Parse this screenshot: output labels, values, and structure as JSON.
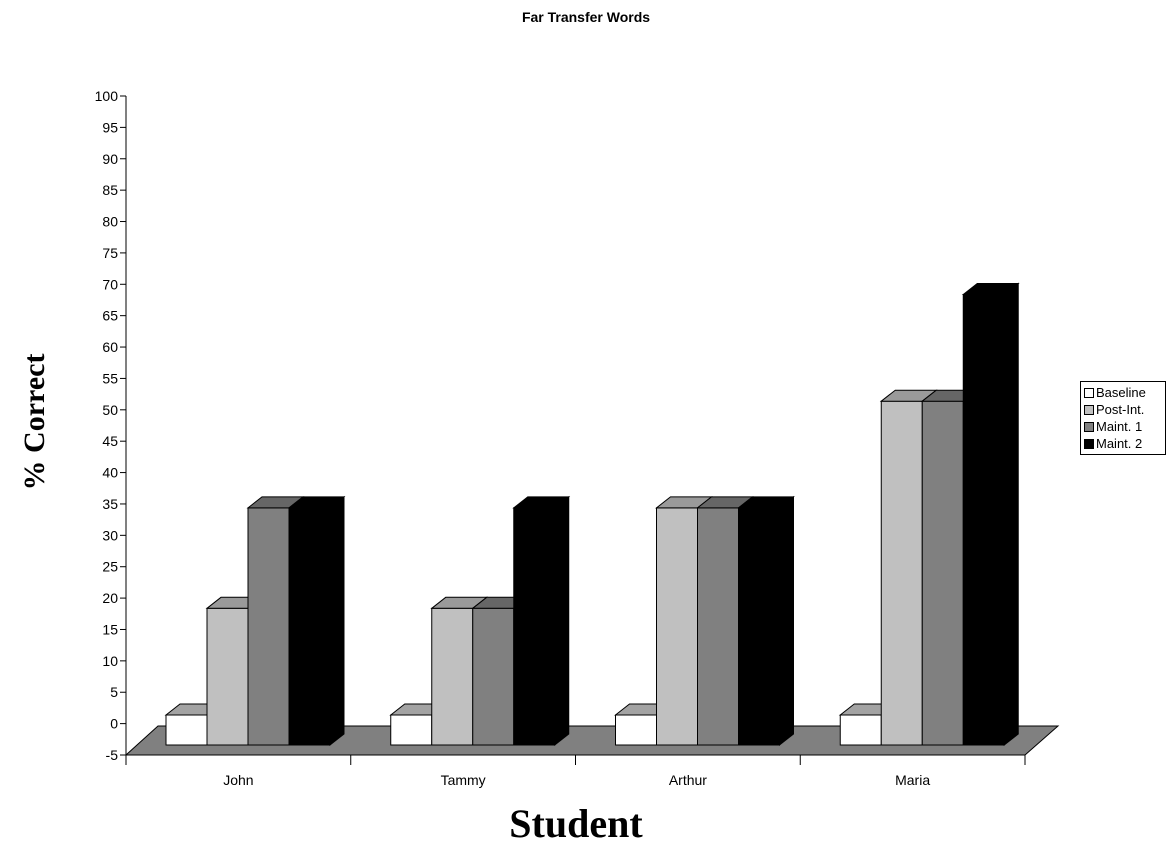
{
  "chart_data": {
    "type": "bar",
    "title": "Far Transfer Words",
    "xlabel": "Student",
    "ylabel": "% Correct",
    "categories": [
      "John",
      "Tammy",
      "Arthur",
      "Maria"
    ],
    "series": [
      {
        "name": "Baseline",
        "color": "#ffffff",
        "values": [
          0,
          0,
          0,
          0
        ]
      },
      {
        "name": "Post-Int.",
        "color": "#c0c0c0",
        "values": [
          17,
          17,
          33,
          50
        ]
      },
      {
        "name": "Maint. 1",
        "color": "#808080",
        "values": [
          33,
          17,
          33,
          50
        ]
      },
      {
        "name": "Maint. 2",
        "color": "#000000",
        "values": [
          33,
          33,
          33,
          67
        ]
      }
    ],
    "ylim": [
      -5,
      100
    ],
    "yticks": [
      "-5",
      "0",
      "5",
      "10",
      "15",
      "20",
      "25",
      "30",
      "35",
      "40",
      "45",
      "50",
      "55",
      "60",
      "65",
      "70",
      "75",
      "80",
      "85",
      "90",
      "95",
      "100"
    ],
    "legend_position": "right",
    "grid": false,
    "floor_color": "#808080"
  }
}
